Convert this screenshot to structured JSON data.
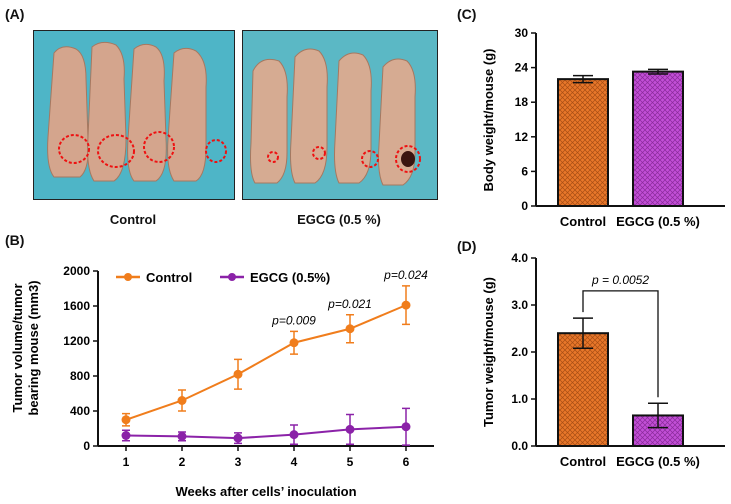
{
  "panel_a": {
    "letter": "(A)",
    "photos": [
      {
        "label": "Control",
        "bg": "#4eb5c7"
      },
      {
        "label": "EGCG (0.5 %)",
        "bg": "#5bb8c5"
      }
    ]
  },
  "chart_data": [
    {
      "panel": "(B)",
      "type": "line",
      "title": "",
      "xlabel": "Weeks after cells’ inoculation",
      "ylabel_line1": "Tumor volume/tumor",
      "ylabel_line2": "bearing mouse (mm3)",
      "x": [
        1,
        2,
        3,
        4,
        5,
        6
      ],
      "xticks": [
        "1",
        "2",
        "3",
        "4",
        "5",
        "6"
      ],
      "yticks": [
        "0",
        "400",
        "800",
        "1200",
        "1600",
        "2000"
      ],
      "ylim": [
        0,
        2000
      ],
      "series": [
        {
          "name": "Control",
          "color": "#f07d1c",
          "values": [
            300,
            520,
            820,
            1180,
            1340,
            1610
          ],
          "errors": [
            70,
            120,
            170,
            130,
            160,
            220
          ]
        },
        {
          "name": "EGCG (0.5%)",
          "color": "#8b22a8",
          "values": [
            120,
            110,
            90,
            130,
            190,
            220
          ],
          "errors": [
            60,
            50,
            60,
            110,
            170,
            210
          ]
        }
      ],
      "annotations": [
        {
          "x": 4,
          "text": "p=0.009"
        },
        {
          "x": 5,
          "text": "p=0.021"
        },
        {
          "x": 6,
          "text": "p=0.024"
        }
      ]
    },
    {
      "panel": "(C)",
      "type": "bar",
      "title": "",
      "xlabel": "",
      "ylabel": "Body weight/mouse (g)",
      "categories": [
        "Control",
        "EGCG (0.5 %)"
      ],
      "values": [
        22.0,
        23.3
      ],
      "errors": [
        0.6,
        0.4
      ],
      "colors": [
        "#e8772a",
        "#c24fd6"
      ],
      "yticks": [
        "0",
        "6",
        "12",
        "18",
        "24",
        "30"
      ],
      "ylim": [
        0,
        30
      ]
    },
    {
      "panel": "(D)",
      "type": "bar",
      "title": "",
      "xlabel": "",
      "ylabel": "Tumor weight/mouse (g)",
      "categories": [
        "Control",
        "EGCG (0.5 %)"
      ],
      "values": [
        2.4,
        0.65
      ],
      "errors": [
        0.32,
        0.26
      ],
      "colors": [
        "#e8772a",
        "#c24fd6"
      ],
      "yticks": [
        "0.0",
        "1.0",
        "2.0",
        "3.0",
        "4.0"
      ],
      "ylim": [
        0,
        4
      ],
      "annotation": "p = 0.0052"
    }
  ]
}
